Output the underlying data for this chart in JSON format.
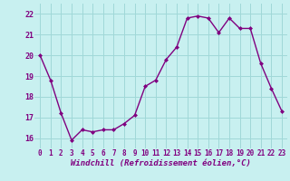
{
  "x": [
    0,
    1,
    2,
    3,
    4,
    5,
    6,
    7,
    8,
    9,
    10,
    11,
    12,
    13,
    14,
    15,
    16,
    17,
    18,
    19,
    20,
    21,
    22,
    23
  ],
  "y": [
    20.0,
    18.8,
    17.2,
    15.9,
    16.4,
    16.3,
    16.4,
    16.4,
    16.7,
    17.1,
    18.5,
    18.8,
    19.8,
    20.4,
    21.8,
    21.9,
    21.8,
    21.1,
    21.8,
    21.3,
    21.3,
    19.6,
    18.4,
    17.3
  ],
  "line_color": "#800080",
  "marker": "D",
  "marker_size": 2.0,
  "line_width": 1.0,
  "bg_color": "#c8f0f0",
  "grid_color": "#a0d8d8",
  "xlabel": "Windchill (Refroidissement éolien,°C)",
  "xlabel_fontsize": 6.5,
  "xtick_fontsize": 5.5,
  "ytick_fontsize": 6.0,
  "ylim": [
    15.5,
    22.5
  ],
  "xlim": [
    -0.5,
    23.5
  ],
  "yticks": [
    16,
    17,
    18,
    19,
    20,
    21,
    22
  ],
  "xticks": [
    0,
    1,
    2,
    3,
    4,
    5,
    6,
    7,
    8,
    9,
    10,
    11,
    12,
    13,
    14,
    15,
    16,
    17,
    18,
    19,
    20,
    21,
    22,
    23
  ]
}
